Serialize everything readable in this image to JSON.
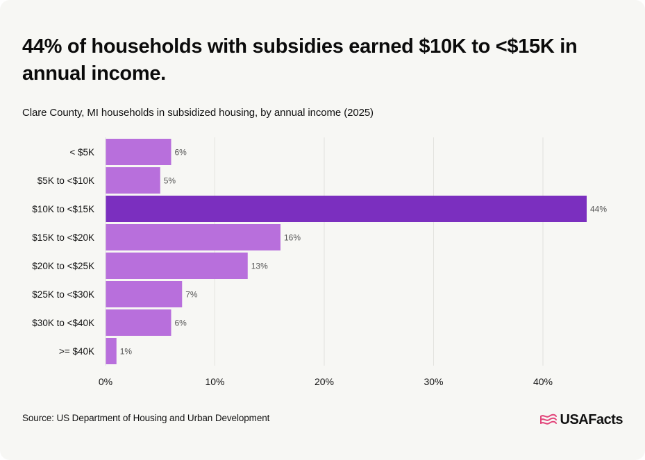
{
  "title": "44% of households with subsidies earned $10K to <$15K in annual income.",
  "subtitle": "Clare County, MI households in subsidized housing, by annual income (2025)",
  "source": "Source: US Department of Housing and Urban Development",
  "brand": {
    "name": "USAFacts",
    "icon": "usa-flag-icon"
  },
  "colors": {
    "bar": "#b86fdc",
    "highlight": "#7b2fbf",
    "grid": "#e2e2de",
    "text": "#111111",
    "label": "#555555",
    "background": "#f7f7f4"
  },
  "chart_data": {
    "type": "bar",
    "orientation": "horizontal",
    "categories": [
      "< $5K",
      "$5K to <$10K",
      "$10K to <$15K",
      "$15K to <$20K",
      "$20K to <$25K",
      "$25K to <$30K",
      "$30K to <$40K",
      ">= $40K"
    ],
    "values": [
      6,
      5,
      44,
      16,
      13,
      7,
      6,
      1
    ],
    "value_labels": [
      "6%",
      "5%",
      "44%",
      "16%",
      "13%",
      "7%",
      "6%",
      "1%"
    ],
    "highlight_category": "$10K to <$15K",
    "xlim": [
      0,
      44
    ],
    "xticks": [
      0,
      10,
      20,
      30,
      40
    ],
    "xtick_labels": [
      "0%",
      "10%",
      "20%",
      "30%",
      "40%"
    ],
    "grid": "vertical",
    "title": "44% of households with subsidies earned $10K to <$15K in annual income.",
    "subtitle": "Clare County, MI households in subsidized housing, by annual income (2025)"
  }
}
